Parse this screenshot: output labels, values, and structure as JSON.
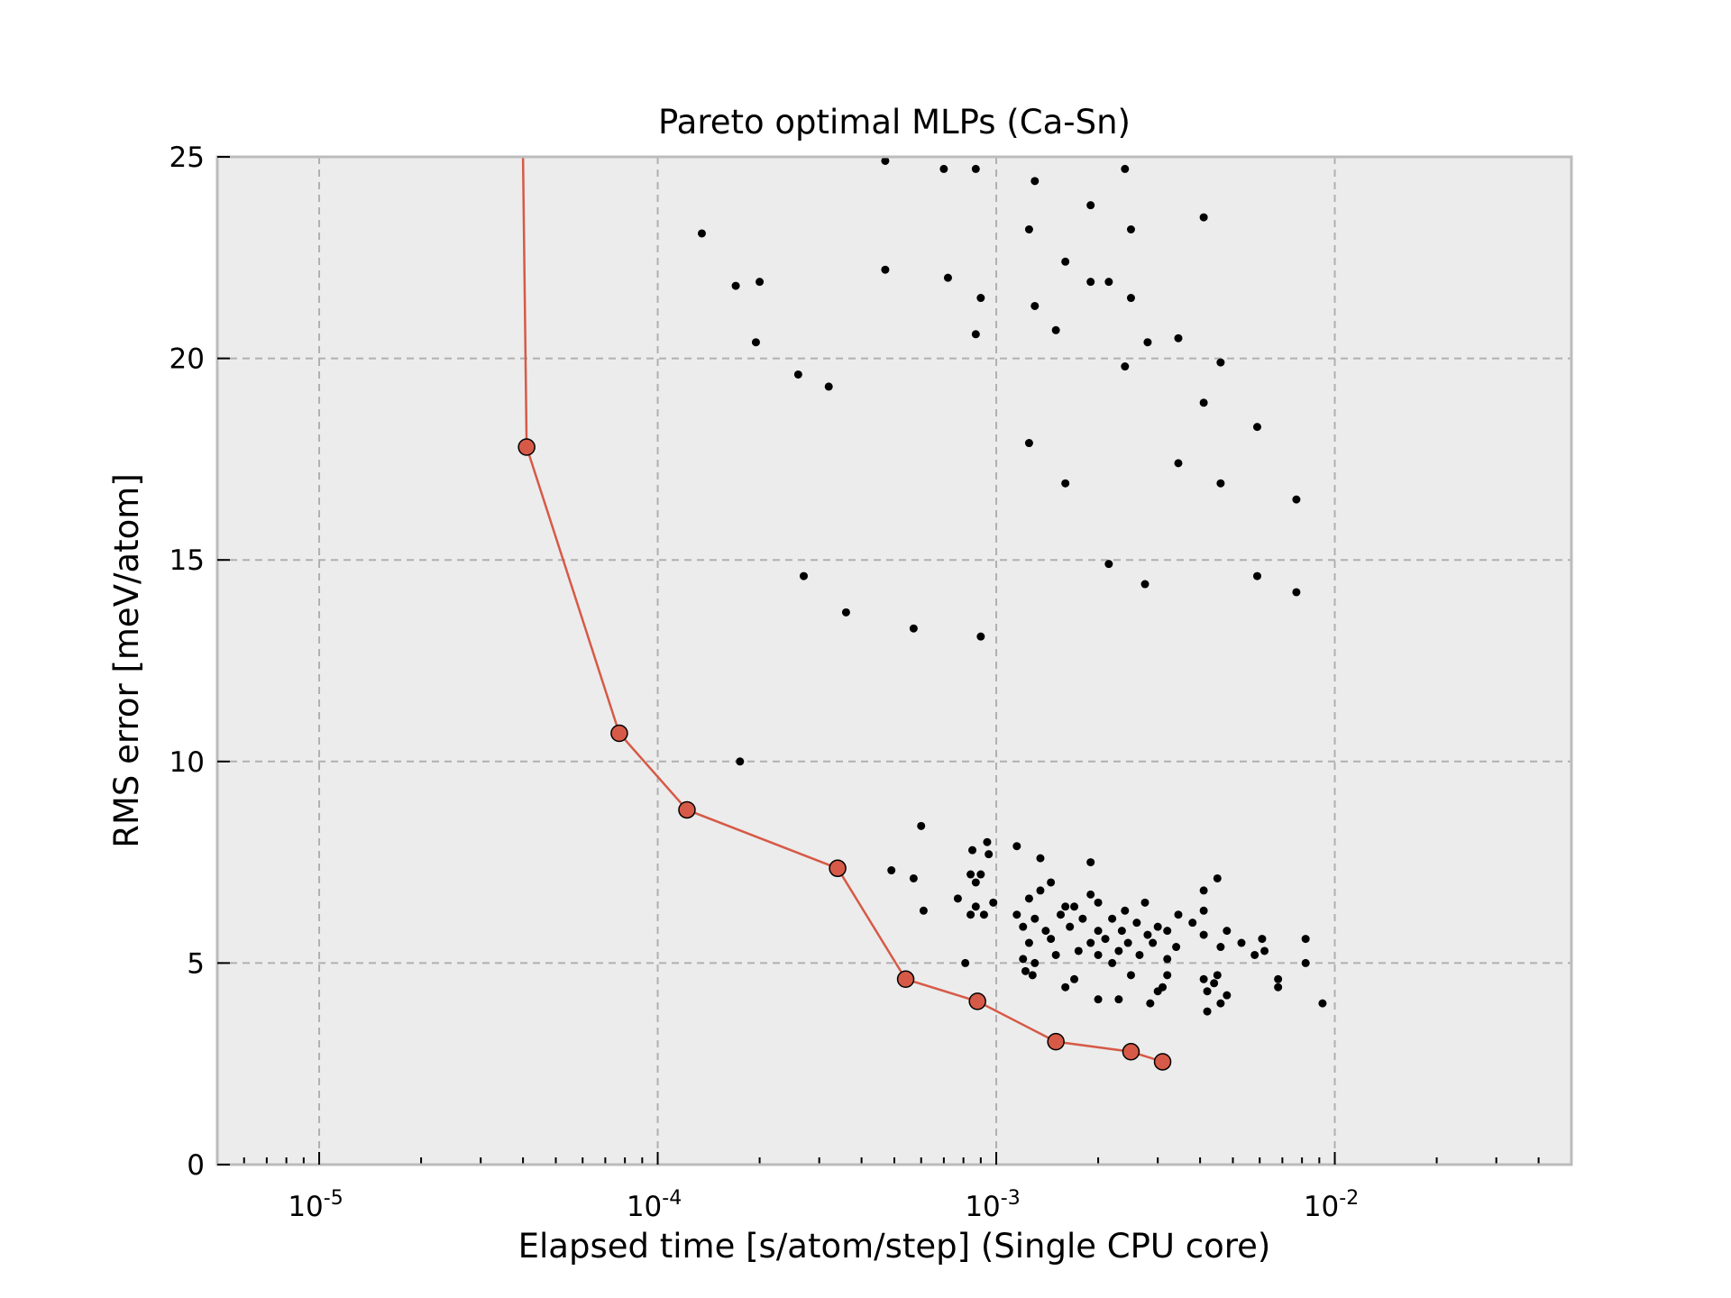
{
  "chart_data": {
    "type": "scatter",
    "title": "Pareto optimal MLPs (Ca-Sn)",
    "xlabel": "Elapsed time [s/atom/step] (Single CPU core)",
    "ylabel": "RMS error [meV/atom]",
    "x_scale": "log",
    "xlim": [
      5e-06,
      0.05
    ],
    "ylim": [
      0,
      25
    ],
    "x_ticks": [
      {
        "value": 1e-05,
        "base": "10",
        "exp": "-5"
      },
      {
        "value": 0.0001,
        "base": "10",
        "exp": "-4"
      },
      {
        "value": 0.001,
        "base": "10",
        "exp": "-3"
      },
      {
        "value": 0.01,
        "base": "10",
        "exp": "-2"
      }
    ],
    "y_ticks": [
      "0",
      "5",
      "10",
      "15",
      "20",
      "25"
    ],
    "grid": true,
    "colors": {
      "pareto": "#d65a47",
      "points": "#000000",
      "background": "#ececec",
      "grid": "#b0b0b0",
      "frame": "#bcbcbc"
    },
    "pareto_front": {
      "top_x": 4e-05,
      "points": [
        [
          4.1e-05,
          17.8
        ],
        [
          7.7e-05,
          10.7
        ],
        [
          0.000122,
          8.8
        ],
        [
          0.00034,
          7.35
        ],
        [
          0.00054,
          4.6
        ],
        [
          0.00088,
          4.05
        ],
        [
          0.0015,
          3.05
        ],
        [
          0.0025,
          2.8
        ],
        [
          0.0031,
          2.55
        ]
      ]
    },
    "points": [
      [
        0.00047,
        24.9
      ],
      [
        0.0007,
        24.7
      ],
      [
        0.00087,
        24.7
      ],
      [
        0.0024,
        24.7
      ],
      [
        0.0013,
        24.4
      ],
      [
        0.0019,
        23.8
      ],
      [
        0.0041,
        23.5
      ],
      [
        0.000135,
        23.1
      ],
      [
        0.00125,
        23.2
      ],
      [
        0.0025,
        23.2
      ],
      [
        0.0016,
        22.4
      ],
      [
        0.00047,
        22.2
      ],
      [
        0.00072,
        22.0
      ],
      [
        0.00017,
        21.8
      ],
      [
        0.0002,
        21.9
      ],
      [
        0.0019,
        21.9
      ],
      [
        0.00215,
        21.9
      ],
      [
        0.0009,
        21.5
      ],
      [
        0.0025,
        21.5
      ],
      [
        0.0013,
        21.3
      ],
      [
        0.00087,
        20.6
      ],
      [
        0.0015,
        20.7
      ],
      [
        0.000195,
        20.4
      ],
      [
        0.0028,
        20.4
      ],
      [
        0.00345,
        20.5
      ],
      [
        0.0046,
        19.9
      ],
      [
        0.0024,
        19.8
      ],
      [
        0.00026,
        19.6
      ],
      [
        0.00032,
        19.3
      ],
      [
        0.0041,
        18.9
      ],
      [
        0.0059,
        18.3
      ],
      [
        0.00125,
        17.9
      ],
      [
        0.00345,
        17.4
      ],
      [
        0.0016,
        16.9
      ],
      [
        0.0046,
        16.9
      ],
      [
        0.0077,
        16.5
      ],
      [
        0.00215,
        14.9
      ],
      [
        0.00027,
        14.6
      ],
      [
        0.0059,
        14.6
      ],
      [
        0.00275,
        14.4
      ],
      [
        0.0077,
        14.2
      ],
      [
        0.00036,
        13.7
      ],
      [
        0.00057,
        13.3
      ],
      [
        0.0009,
        13.1
      ],
      [
        0.000175,
        10.0
      ],
      [
        0.0006,
        8.4
      ],
      [
        0.00094,
        8.0
      ],
      [
        0.00085,
        7.8
      ],
      [
        0.00095,
        7.7
      ],
      [
        0.00115,
        7.9
      ],
      [
        0.00135,
        7.6
      ],
      [
        0.0019,
        7.5
      ],
      [
        0.00049,
        7.3
      ],
      [
        0.00084,
        7.2
      ],
      [
        0.0009,
        7.2
      ],
      [
        0.00057,
        7.1
      ],
      [
        0.00087,
        7.0
      ],
      [
        0.00145,
        7.0
      ],
      [
        0.0045,
        7.1
      ],
      [
        0.00135,
        6.8
      ],
      [
        0.0019,
        6.7
      ],
      [
        0.0041,
        6.8
      ],
      [
        0.00077,
        6.6
      ],
      [
        0.00098,
        6.5
      ],
      [
        0.00087,
        6.4
      ],
      [
        0.00125,
        6.6
      ],
      [
        0.0016,
        6.4
      ],
      [
        0.0017,
        6.4
      ],
      [
        0.002,
        6.5
      ],
      [
        0.0024,
        6.3
      ],
      [
        0.00275,
        6.5
      ],
      [
        0.00345,
        6.2
      ],
      [
        0.0041,
        6.3
      ],
      [
        0.00061,
        6.3
      ],
      [
        0.00084,
        6.2
      ],
      [
        0.00092,
        6.2
      ],
      [
        0.00115,
        6.2
      ],
      [
        0.0013,
        6.1
      ],
      [
        0.00155,
        6.2
      ],
      [
        0.0018,
        6.1
      ],
      [
        0.0022,
        6.1
      ],
      [
        0.0026,
        6.0
      ],
      [
        0.003,
        5.9
      ],
      [
        0.0038,
        6.0
      ],
      [
        0.0012,
        5.9
      ],
      [
        0.0014,
        5.8
      ],
      [
        0.00165,
        5.9
      ],
      [
        0.002,
        5.8
      ],
      [
        0.00235,
        5.8
      ],
      [
        0.0028,
        5.7
      ],
      [
        0.0032,
        5.8
      ],
      [
        0.0041,
        5.7
      ],
      [
        0.0048,
        5.8
      ],
      [
        0.00125,
        5.5
      ],
      [
        0.00145,
        5.6
      ],
      [
        0.0019,
        5.5
      ],
      [
        0.0021,
        5.6
      ],
      [
        0.00245,
        5.5
      ],
      [
        0.0029,
        5.5
      ],
      [
        0.0034,
        5.4
      ],
      [
        0.0046,
        5.4
      ],
      [
        0.0053,
        5.5
      ],
      [
        0.0061,
        5.6
      ],
      [
        0.0082,
        5.6
      ],
      [
        0.00175,
        5.3
      ],
      [
        0.002,
        5.2
      ],
      [
        0.0023,
        5.3
      ],
      [
        0.00265,
        5.2
      ],
      [
        0.0032,
        5.1
      ],
      [
        0.0058,
        5.2
      ],
      [
        0.0062,
        5.3
      ],
      [
        0.0012,
        5.1
      ],
      [
        0.0013,
        5.0
      ],
      [
        0.0015,
        5.2
      ],
      [
        0.0022,
        5.0
      ],
      [
        0.00081,
        5.0
      ],
      [
        0.0082,
        5.0
      ],
      [
        0.00122,
        4.8
      ],
      [
        0.00128,
        4.7
      ],
      [
        0.0017,
        4.6
      ],
      [
        0.0025,
        4.7
      ],
      [
        0.0032,
        4.7
      ],
      [
        0.0041,
        4.6
      ],
      [
        0.0045,
        4.7
      ],
      [
        0.0068,
        4.6
      ],
      [
        0.0016,
        4.4
      ],
      [
        0.0031,
        4.4
      ],
      [
        0.0044,
        4.5
      ],
      [
        0.0068,
        4.4
      ],
      [
        0.003,
        4.3
      ],
      [
        0.0042,
        4.3
      ],
      [
        0.0048,
        4.2
      ],
      [
        0.002,
        4.1
      ],
      [
        0.0023,
        4.1
      ],
      [
        0.00285,
        4.0
      ],
      [
        0.0046,
        4.0
      ],
      [
        0.0092,
        4.0
      ],
      [
        0.0042,
        3.8
      ]
    ]
  }
}
